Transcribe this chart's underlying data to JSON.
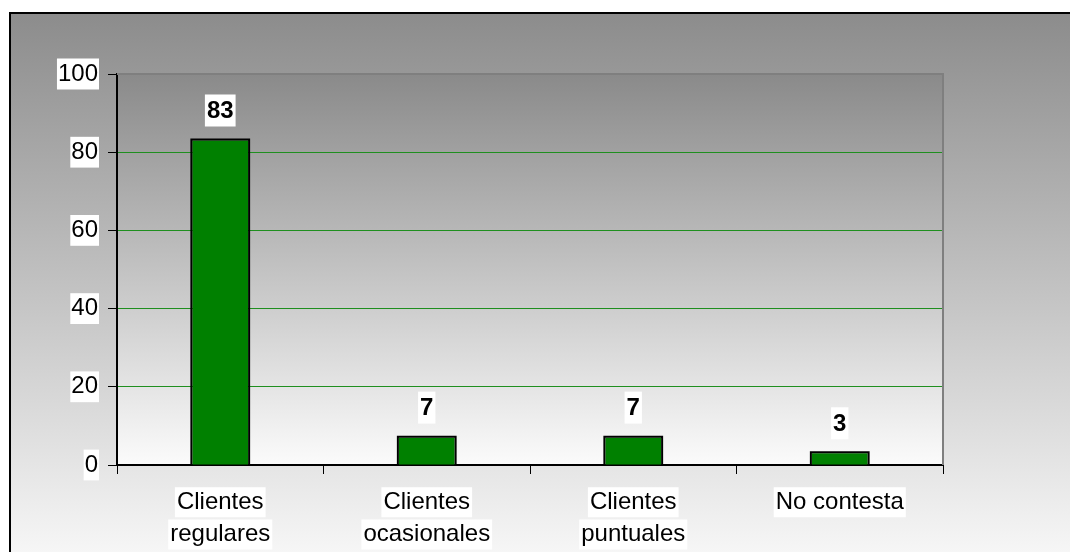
{
  "chart_data": {
    "type": "bar",
    "categories": [
      "Clientes regulares",
      "Clientes ocasionales",
      "Clientes puntuales",
      "No contesta"
    ],
    "values": [
      83,
      7,
      7,
      3
    ],
    "color": "#008000",
    "ylim": [
      0,
      100
    ],
    "yticks": [
      0,
      20,
      40,
      60,
      80,
      100
    ],
    "grid": "y",
    "data_labels": true
  }
}
